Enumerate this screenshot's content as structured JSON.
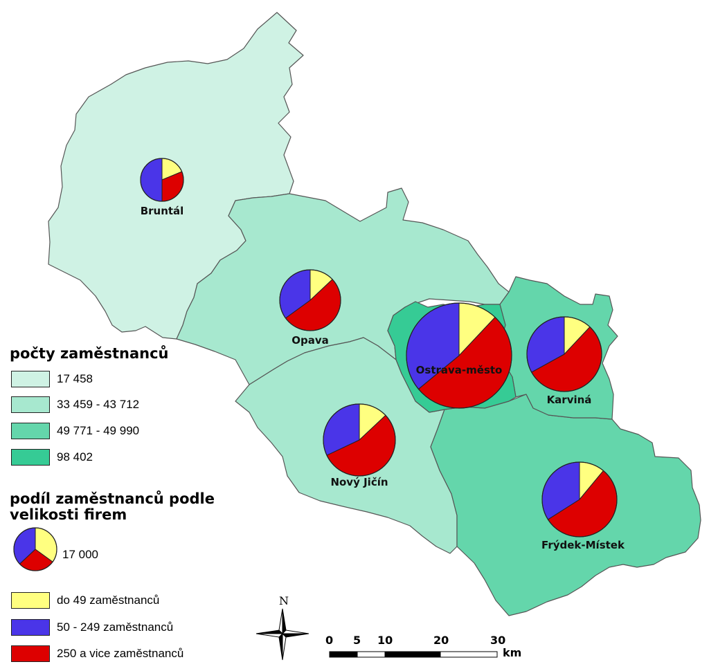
{
  "colors": {
    "class1": "#cff2e4",
    "class2": "#a7e8cf",
    "class3": "#64d6ab",
    "class4": "#36cb95",
    "small": "#ffff80",
    "medium": "#4a35e8",
    "large": "#dd0000"
  },
  "legend": {
    "counts_title": "počty zaměstnanců",
    "classes": [
      {
        "label": "17 458"
      },
      {
        "label": "33 459 - 43 712"
      },
      {
        "label": "49 771 - 49 990"
      },
      {
        "label": "98 402"
      }
    ],
    "share_title_line1": "podíl zaměstnanců podle",
    "share_title_line2": "velikosti firem",
    "pie_size_label": "17 000",
    "categories": [
      {
        "label": "do 49 zaměstnanců"
      },
      {
        "label": "50 - 249 zaměstnanců"
      },
      {
        "label": "250 a vice zaměstnanců"
      }
    ]
  },
  "districts": [
    {
      "name": "Bruntál",
      "shares": [
        15,
        40,
        25
      ]
    },
    {
      "name": "Opava",
      "shares": [
        13,
        35,
        52
      ]
    },
    {
      "name": "Ostrava-město",
      "shares": [
        12,
        36,
        52
      ]
    },
    {
      "name": "Karviná",
      "shares": [
        12,
        33,
        55
      ]
    },
    {
      "name": "Nový Jičín",
      "shares": [
        13,
        32,
        55
      ]
    },
    {
      "name": "Frýdek-Místek",
      "shares": [
        11,
        34,
        55
      ]
    }
  ],
  "north_arrow": {
    "label": "N"
  },
  "scale_bar": {
    "ticks": [
      "0",
      "5",
      "10",
      "20",
      "30"
    ],
    "unit": "km"
  }
}
